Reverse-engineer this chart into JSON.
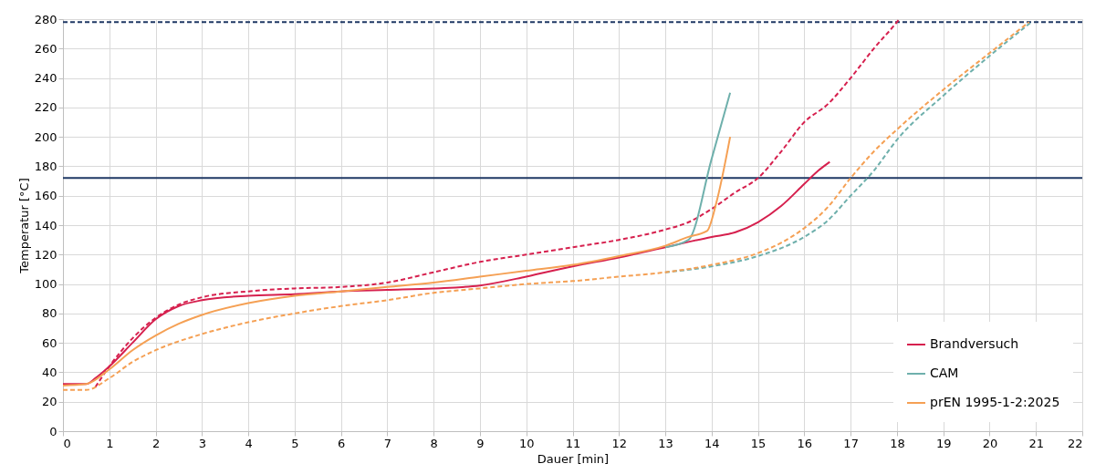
{
  "chart_data": {
    "type": "line",
    "xlabel": "Dauer [min]",
    "ylabel": "Temperatur [°C]",
    "xlim": [
      0,
      22
    ],
    "xticks": [
      0,
      1,
      2,
      3,
      4,
      5,
      6,
      7,
      8,
      9,
      10,
      11,
      12,
      13,
      14,
      15,
      16,
      17,
      18,
      19,
      20,
      21,
      22
    ],
    "ylim": [
      0,
      280
    ],
    "yticks": [
      0,
      20,
      40,
      60,
      80,
      100,
      120,
      140,
      160,
      180,
      200,
      220,
      240,
      260,
      280
    ],
    "grid": true,
    "legend": "bottom right",
    "ref_lines": [
      {
        "axis": "y",
        "value": 172,
        "color": "#1f3864",
        "line_style": "solid"
      },
      {
        "axis": "y",
        "value": 278,
        "color": "#1f3864",
        "line_style": "dashed"
      }
    ],
    "series": [
      {
        "name": "Brandversuch",
        "color": "#d6204e",
        "line_style": "solid",
        "x": [
          0,
          0.5,
          0.7,
          1,
          1.5,
          2,
          2.5,
          3,
          4,
          5,
          6,
          7,
          8,
          9,
          10,
          11,
          12,
          13,
          14,
          14.5,
          15,
          15.5,
          16,
          16.3,
          16.55
        ],
        "values": [
          32,
          32,
          36,
          44,
          60,
          76,
          85,
          89,
          92,
          93,
          95,
          96,
          97,
          99,
          105,
          112,
          118,
          125,
          132,
          135,
          142,
          153,
          168,
          177,
          183
        ]
      },
      {
        "name": "CAM",
        "color": "#6fb0ac",
        "line_style": "solid",
        "x": [
          13,
          13.5,
          14,
          14.4
        ],
        "values": [
          125,
          130,
          185,
          230
        ]
      },
      {
        "name": "prEN 1995-1-2:2025",
        "color": "#f5a054",
        "line_style": "solid",
        "x": [
          0,
          0.5,
          1,
          1.5,
          2,
          2.5,
          3,
          4,
          5,
          6,
          7,
          8,
          9,
          10,
          11,
          12,
          13,
          13.5,
          13.9,
          14.1,
          14.4
        ],
        "values": [
          31,
          32,
          42,
          55,
          65,
          73,
          79,
          87,
          92,
          95,
          98,
          101,
          105,
          109,
          113,
          119,
          126,
          132,
          136,
          155,
          200
        ]
      },
      {
        "color": "#d6204e",
        "line_style": "dashed",
        "x": [
          0.7,
          1,
          2,
          2.5,
          3,
          4,
          5,
          6,
          7,
          8,
          9,
          10,
          11,
          12,
          13,
          13.5,
          14,
          14.5,
          15,
          15.5,
          16,
          16.5,
          17,
          17.5,
          18,
          18.05
        ],
        "values": [
          30,
          44,
          77,
          86,
          91,
          95,
          97,
          98,
          101,
          108,
          115,
          120,
          125,
          130,
          137,
          142,
          151,
          162,
          172,
          190,
          210,
          222,
          240,
          260,
          278,
          280
        ]
      },
      {
        "color": "#6fb0ac",
        "line_style": "dashed",
        "x": [
          13,
          14,
          15,
          16,
          16.5,
          17,
          17.5,
          18,
          19,
          20,
          20.9
        ],
        "values": [
          108,
          112,
          119,
          132,
          143,
          160,
          177,
          198,
          228,
          255,
          278
        ]
      },
      {
        "color": "#f5a054",
        "line_style": "dashed",
        "x": [
          0,
          0.5,
          1,
          1.5,
          2,
          3,
          4,
          5,
          6,
          7,
          8,
          9,
          10,
          11,
          12,
          13,
          14,
          15,
          15.5,
          16,
          16.5,
          17,
          17.5,
          18,
          19,
          20,
          20.85
        ],
        "values": [
          28,
          28,
          36,
          47,
          55,
          66,
          74,
          80,
          85,
          89,
          94,
          97,
          100,
          102,
          105,
          108,
          113,
          121,
          128,
          138,
          152,
          172,
          190,
          205,
          232,
          257,
          278
        ]
      }
    ]
  }
}
